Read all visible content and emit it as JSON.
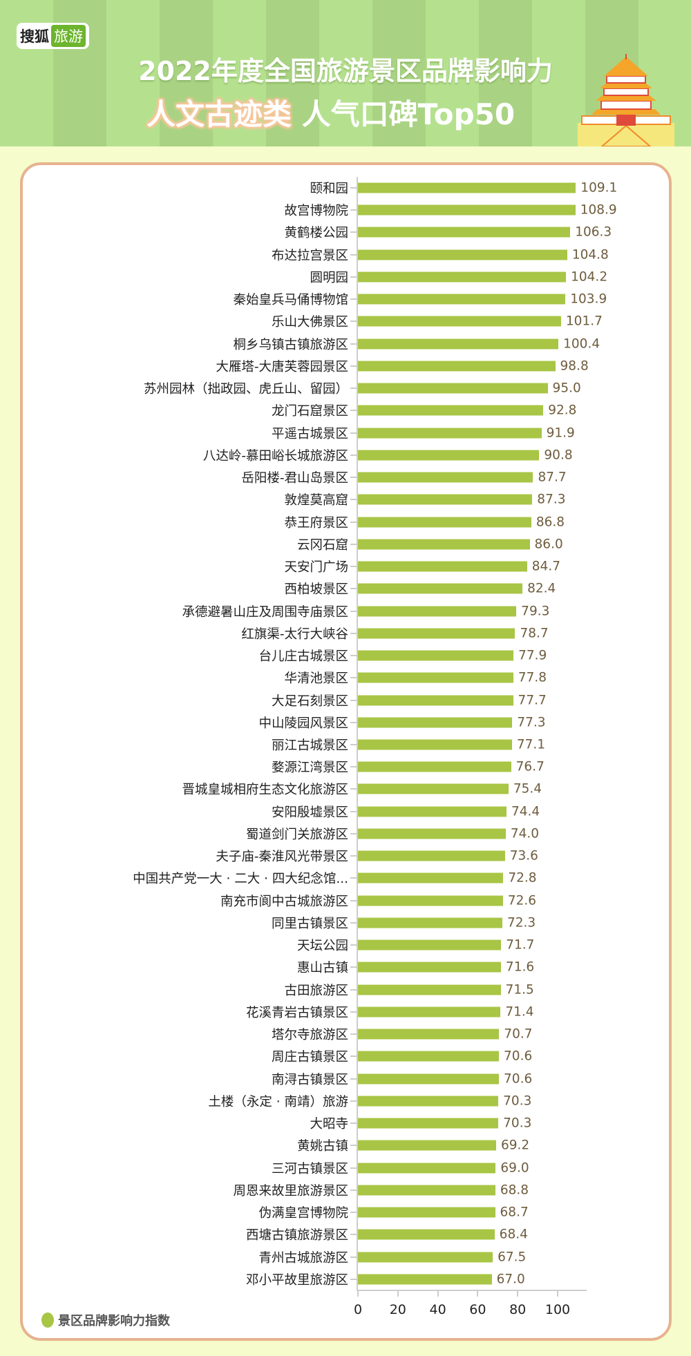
{
  "header": {
    "logo_part1": "搜狐",
    "logo_part2": "旅游",
    "title_line1": "2022年度全国旅游景区品牌影响力",
    "title_highlight": "人文古迹类",
    "title_rest": "人气口碑Top50"
  },
  "watermark": "搜狐旅游",
  "colors": {
    "bar": "#a8c545",
    "value_text": "#6e5c3e",
    "border": "#e6b38f"
  },
  "chart_data": {
    "type": "bar",
    "orientation": "horizontal",
    "title": "2022年度全国旅游景区品牌影响力 人文古迹类 人气口碑Top50",
    "xlim": [
      0,
      100
    ],
    "xticks": [
      "0",
      "20",
      "40",
      "60",
      "80",
      "100"
    ],
    "legend": {
      "label": "景区品牌影响力指数",
      "placement": "bottom-left"
    },
    "categories": [
      "颐和园",
      "故宫博物院",
      "黄鹤楼公园",
      "布达拉宫景区",
      "圆明园",
      "秦始皇兵马俑博物馆",
      "乐山大佛景区",
      "桐乡乌镇古镇旅游区",
      "大雁塔-大唐芙蓉园景区",
      "苏州园林（拙政园、虎丘山、留园）",
      "龙门石窟景区",
      "平遥古城景区",
      "八达岭-慕田峪长城旅游区",
      "岳阳楼-君山岛景区",
      "敦煌莫高窟",
      "恭王府景区",
      "云冈石窟",
      "天安门广场",
      "西柏坡景区",
      "承德避暑山庄及周围寺庙景区",
      "红旗渠-太行大峡谷",
      "台儿庄古城景区",
      "华清池景区",
      "大足石刻景区",
      "中山陵园风景区",
      "丽江古城景区",
      "婺源江湾景区",
      "晋城皇城相府生态文化旅游区",
      "安阳殷墟景区",
      "蜀道剑门关旅游区",
      "夫子庙-秦淮风光带景区",
      "中国共产党一大 · 二大 · 四大纪念馆...",
      "南充市阆中古城旅游区",
      "同里古镇景区",
      "天坛公园",
      "惠山古镇",
      "古田旅游区",
      "花溪青岩古镇景区",
      "塔尔寺旅游区",
      "周庄古镇景区",
      "南浔古镇景区",
      "土楼（永定 · 南靖）旅游",
      "大昭寺",
      "黄姚古镇",
      "三河古镇景区",
      "周恩来故里旅游景区",
      "伪满皇宫博物院",
      "西塘古镇旅游景区",
      "青州古城旅游区",
      "邓小平故里旅游区"
    ],
    "values": [
      109.1,
      108.9,
      106.3,
      104.8,
      104.2,
      103.9,
      101.7,
      100.4,
      98.8,
      95.0,
      92.8,
      91.9,
      90.8,
      87.7,
      87.3,
      86.8,
      86.0,
      84.7,
      82.4,
      79.3,
      78.7,
      77.9,
      77.8,
      77.7,
      77.3,
      77.1,
      76.7,
      75.4,
      74.4,
      74.0,
      73.6,
      72.8,
      72.6,
      72.3,
      71.7,
      71.6,
      71.5,
      71.4,
      70.7,
      70.6,
      70.6,
      70.3,
      70.3,
      69.2,
      69.0,
      68.8,
      68.7,
      68.4,
      67.5,
      67.0
    ],
    "value_labels": [
      "109.1",
      "108.9",
      "106.3",
      "104.8",
      "104.2",
      "103.9",
      "101.7",
      "100.4",
      "98.8",
      "95.0",
      "92.8",
      "91.9",
      "90.8",
      "87.7",
      "87.3",
      "86.8",
      "86.0",
      "84.7",
      "82.4",
      "79.3",
      "78.7",
      "77.9",
      "77.8",
      "77.7",
      "77.3",
      "77.1",
      "76.7",
      "75.4",
      "74.4",
      "74.0",
      "73.6",
      "72.8",
      "72.6",
      "72.3",
      "71.7",
      "71.6",
      "71.5",
      "71.4",
      "70.7",
      "70.6",
      "70.6",
      "70.3",
      "70.3",
      "69.2",
      "69.0",
      "68.8",
      "68.7",
      "68.4",
      "67.5",
      "67.0"
    ]
  }
}
